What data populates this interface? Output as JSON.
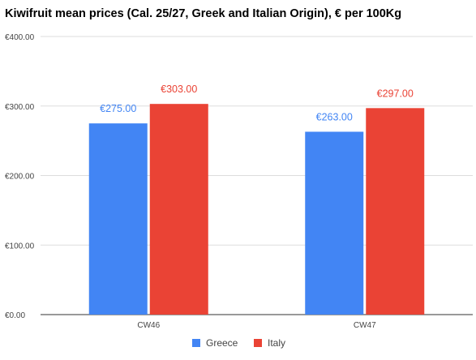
{
  "chart_data": {
    "type": "bar",
    "title": "Kiwifruit mean prices (Cal. 25/27, Greek and Italian Origin), € per 100Kg",
    "categories": [
      "CW46",
      "CW47"
    ],
    "series": [
      {
        "name": "Greece",
        "values": [
          275,
          263
        ],
        "labels": [
          "€275.00",
          "€263.00"
        ],
        "color": "#4285f4"
      },
      {
        "name": "Italy",
        "values": [
          303,
          297
        ],
        "labels": [
          "€303.00",
          "€297.00"
        ],
        "color": "#ea4335"
      }
    ],
    "yticks": [
      "€0.00",
      "€100.00",
      "€200.00",
      "€300.00",
      "€400.00"
    ],
    "ylim": [
      0,
      400
    ],
    "grid": true,
    "legend": "bottom"
  }
}
